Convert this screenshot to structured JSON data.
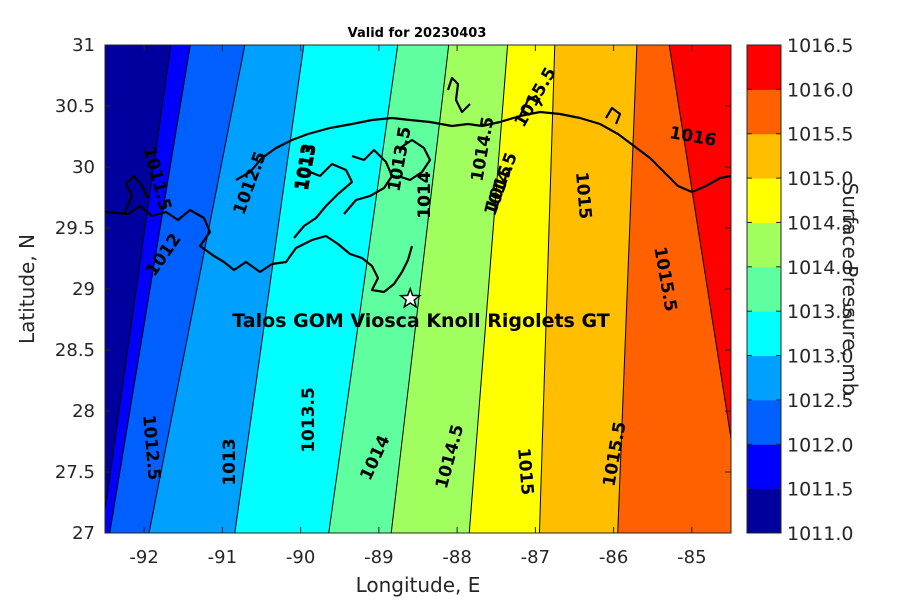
{
  "title": "Valid for 20230403",
  "xlabel": "Longitude, E",
  "ylabel": "Latitude, N",
  "colorbar_label": "Surface Pressure, mb",
  "xticks": [
    "-92",
    "-91",
    "-90",
    "-89",
    "-88",
    "-87",
    "-86",
    "-85"
  ],
  "yticks": [
    "31",
    "30.5",
    "30",
    "29.5",
    "29",
    "28.5",
    "28",
    "27.5",
    "27"
  ],
  "colorbar_ticks": [
    "1016.5",
    "1016.0",
    "1015.5",
    "1015.0",
    "1014.5",
    "1014.0",
    "1013.5",
    "1013.0",
    "1012.5",
    "1012.0",
    "1011.5",
    "1011.0"
  ],
  "site": {
    "name": "Talos GOM Viosca Knoll Rigolets GT",
    "lon": -88.6,
    "lat": 28.92
  },
  "contour_labels": [
    "1011.5",
    "1012",
    "1012.5",
    "1013",
    "1013.5",
    "1014",
    "1014.5",
    "1015",
    "1015.5",
    "1016",
    "1012.5",
    "1013",
    "1013.5",
    "1014",
    "1014.5",
    "1015",
    "1015.5",
    "1015.5",
    "1015",
    "1014.5",
    "1014",
    "1013.5",
    "1013"
  ],
  "chart_data": {
    "type": "heatmap",
    "title": "Valid for 20230403",
    "xlabel": "Longitude, E",
    "ylabel": "Latitude, N",
    "xlim": [
      -92.5,
      -84.5
    ],
    "ylim": [
      27,
      31
    ],
    "color_scale": {
      "label": "Surface Pressure, mb",
      "range": [
        1011.0,
        1016.5
      ],
      "step": 0.5,
      "colors": [
        "#00009f",
        "#0000ff",
        "#005fff",
        "#00a0ff",
        "#00ffff",
        "#5fffa0",
        "#a0ff5f",
        "#ffff00",
        "#ffbf00",
        "#ff6000",
        "#ff0000"
      ]
    },
    "contour_levels": [
      1011.5,
      1012,
      1012.5,
      1013,
      1013.5,
      1014,
      1014.5,
      1015,
      1015.5,
      1016
    ],
    "isobars": [
      {
        "level": 1011.5,
        "bottom_lon": -92.55,
        "top_lon": -91.65
      },
      {
        "level": 1012.0,
        "bottom_lon": -92.45,
        "top_lon": -91.4
      },
      {
        "level": 1012.5,
        "bottom_lon": -91.95,
        "top_lon": -90.7
      },
      {
        "level": 1013.0,
        "bottom_lon": -90.85,
        "top_lon": -89.95
      },
      {
        "level": 1013.5,
        "bottom_lon": -89.65,
        "top_lon": -88.75
      },
      {
        "level": 1014.0,
        "bottom_lon": -88.85,
        "top_lon": -88.1
      },
      {
        "level": 1014.5,
        "bottom_lon": -87.85,
        "top_lon": -87.35
      },
      {
        "level": 1015.0,
        "bottom_lon": -86.95,
        "top_lon": -86.75
      },
      {
        "level": 1015.5,
        "bottom_lon": -85.95,
        "top_lon": -85.7
      },
      {
        "level": 1016.0,
        "bottom_lon": -84.3,
        "top_lon": -85.3
      }
    ]
  }
}
